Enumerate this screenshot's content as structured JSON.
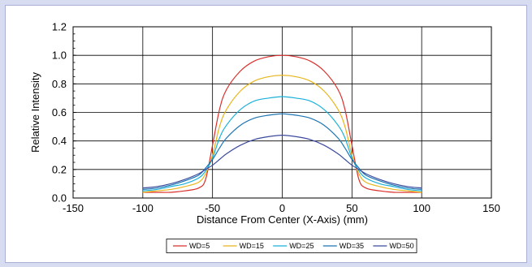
{
  "chart_data": {
    "type": "line",
    "title": "",
    "xlabel": "Distance From Center (X-Axis) (mm)",
    "ylabel": "Relative Intensity",
    "xlim": [
      -150,
      150
    ],
    "ylim": [
      0,
      1.2
    ],
    "x_ticks": [
      -150,
      -100,
      -50,
      0,
      50,
      100,
      150
    ],
    "x_tick_labels": [
      "-150",
      "-100",
      "-50",
      "0",
      "50",
      "100",
      "150"
    ],
    "y_ticks": [
      0,
      0.2,
      0.4,
      0.6,
      0.8,
      1.0,
      1.2
    ],
    "y_tick_labels": [
      "0.0",
      "0.2",
      "0.4",
      "0.6",
      "0.8",
      "1.0",
      "1.2"
    ],
    "grid": true,
    "legend_position": "bottom",
    "x": [
      -100,
      -90,
      -80,
      -70,
      -60,
      -55,
      -50,
      -45,
      -40,
      -30,
      -20,
      -10,
      0,
      10,
      20,
      30,
      40,
      45,
      50,
      55,
      60,
      70,
      80,
      90,
      100
    ],
    "series": [
      {
        "name": "WD=5",
        "color": "#d9302b",
        "values": [
          0.04,
          0.04,
          0.04,
          0.05,
          0.07,
          0.13,
          0.37,
          0.62,
          0.76,
          0.89,
          0.96,
          0.99,
          1.0,
          0.99,
          0.96,
          0.89,
          0.76,
          0.62,
          0.37,
          0.13,
          0.07,
          0.05,
          0.04,
          0.04,
          0.04
        ]
      },
      {
        "name": "WD=15",
        "color": "#e8b51c",
        "values": [
          0.04,
          0.05,
          0.06,
          0.08,
          0.11,
          0.17,
          0.3,
          0.5,
          0.62,
          0.75,
          0.82,
          0.85,
          0.86,
          0.85,
          0.82,
          0.75,
          0.62,
          0.5,
          0.3,
          0.17,
          0.11,
          0.08,
          0.06,
          0.05,
          0.04
        ]
      },
      {
        "name": "WD=25",
        "color": "#1bb1d9",
        "values": [
          0.05,
          0.06,
          0.08,
          0.1,
          0.14,
          0.19,
          0.28,
          0.42,
          0.51,
          0.62,
          0.68,
          0.7,
          0.71,
          0.7,
          0.68,
          0.62,
          0.51,
          0.42,
          0.28,
          0.19,
          0.14,
          0.1,
          0.08,
          0.06,
          0.05
        ]
      },
      {
        "name": "WD=35",
        "color": "#1f75b3",
        "values": [
          0.06,
          0.07,
          0.09,
          0.12,
          0.16,
          0.21,
          0.27,
          0.35,
          0.42,
          0.51,
          0.56,
          0.58,
          0.59,
          0.58,
          0.56,
          0.51,
          0.42,
          0.35,
          0.27,
          0.21,
          0.16,
          0.12,
          0.09,
          0.07,
          0.06
        ]
      },
      {
        "name": "WD=50",
        "color": "#3b4a9c",
        "values": [
          0.07,
          0.08,
          0.1,
          0.13,
          0.17,
          0.2,
          0.23,
          0.27,
          0.31,
          0.37,
          0.41,
          0.43,
          0.44,
          0.43,
          0.41,
          0.37,
          0.31,
          0.27,
          0.23,
          0.2,
          0.17,
          0.13,
          0.1,
          0.08,
          0.07
        ]
      }
    ]
  }
}
